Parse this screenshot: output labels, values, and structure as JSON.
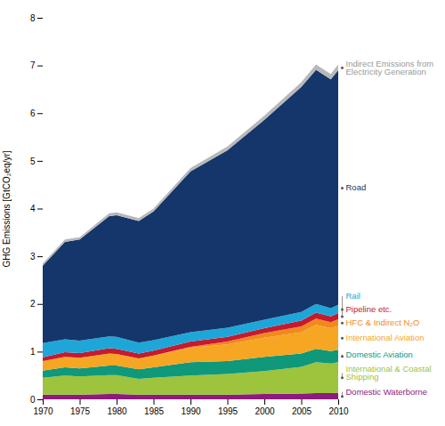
{
  "chart_data": {
    "type": "area",
    "stacked": true,
    "y_label": "GHG Emissions [GtCO₂eq/yr]",
    "x": [
      1970,
      1973,
      1975,
      1979,
      1980,
      1983,
      1985,
      1990,
      1995,
      2000,
      2005,
      2007,
      2009,
      2010
    ],
    "xlim": [
      1970,
      2010
    ],
    "xticks": [
      1970,
      1975,
      1980,
      1985,
      1990,
      1995,
      2000,
      2005,
      2010
    ],
    "ylim": [
      0,
      8
    ],
    "yticks": [
      0,
      1,
      2,
      3,
      4,
      5,
      6,
      7,
      8
    ],
    "series": [
      {
        "name": "Domestic Waterborne",
        "color": "#8e1b7c",
        "values": [
          0.1,
          0.1,
          0.1,
          0.11,
          0.11,
          0.1,
          0.1,
          0.1,
          0.1,
          0.11,
          0.12,
          0.13,
          0.13,
          0.14
        ]
      },
      {
        "name": "International & Coastal Shipping",
        "color": "#9dc43c",
        "values": [
          0.35,
          0.4,
          0.38,
          0.4,
          0.4,
          0.33,
          0.35,
          0.4,
          0.43,
          0.48,
          0.56,
          0.65,
          0.62,
          0.64
        ]
      },
      {
        "name": "Domestic Aviation",
        "color": "#0f987a",
        "values": [
          0.15,
          0.17,
          0.17,
          0.2,
          0.2,
          0.2,
          0.22,
          0.28,
          0.27,
          0.3,
          0.28,
          0.28,
          0.26,
          0.26
        ]
      },
      {
        "name": "International Aviation",
        "color": "#f6a623",
        "values": [
          0.2,
          0.22,
          0.22,
          0.25,
          0.24,
          0.23,
          0.25,
          0.3,
          0.35,
          0.4,
          0.45,
          0.5,
          0.48,
          0.5
        ]
      },
      {
        "name": "HFC & Indirect N₂O",
        "color": "#f08a1c",
        "values": [
          0.0,
          0.0,
          0.0,
          0.0,
          0.0,
          0.0,
          0.0,
          0.02,
          0.06,
          0.1,
          0.12,
          0.13,
          0.13,
          0.14
        ]
      },
      {
        "name": "Pipeline etc.",
        "color": "#c8192e",
        "values": [
          0.08,
          0.1,
          0.1,
          0.11,
          0.11,
          0.1,
          0.1,
          0.11,
          0.1,
          0.1,
          0.12,
          0.13,
          0.12,
          0.13
        ]
      },
      {
        "name": "Rail",
        "color": "#1fa6d8",
        "values": [
          0.3,
          0.27,
          0.26,
          0.25,
          0.25,
          0.23,
          0.22,
          0.2,
          0.19,
          0.18,
          0.18,
          0.18,
          0.17,
          0.17
        ]
      },
      {
        "name": "Road",
        "color": "#14366b",
        "values": [
          1.62,
          2.04,
          2.12,
          2.52,
          2.55,
          2.55,
          2.7,
          3.37,
          3.72,
          4.19,
          4.72,
          4.91,
          4.8,
          4.92
        ]
      },
      {
        "name": "Indirect Emissions from Electricity Generation",
        "color": "#b8b8b8",
        "values": [
          0.05,
          0.05,
          0.05,
          0.06,
          0.06,
          0.06,
          0.06,
          0.07,
          0.08,
          0.09,
          0.1,
          0.11,
          0.11,
          0.12
        ]
      }
    ]
  }
}
